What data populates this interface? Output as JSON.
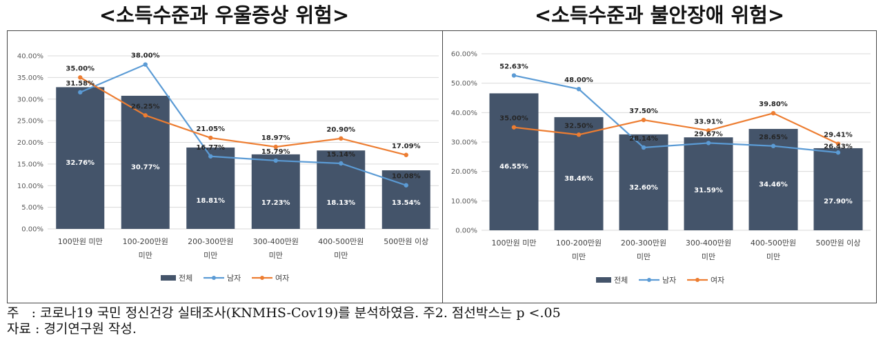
{
  "colors": {
    "total": "#44546a",
    "male": "#5b9bd5",
    "female": "#ed7d31"
  },
  "legend": {
    "total": "전체",
    "male": "남자",
    "female": "여자"
  },
  "chart_data": [
    {
      "type": "bar",
      "title": "<소득수준과 우울증상 위험>",
      "categories": [
        [
          "100만원 미만"
        ],
        [
          "100-200만원",
          "미만"
        ],
        [
          "200-300만원",
          "미만"
        ],
        [
          "300-400만원",
          "미만"
        ],
        [
          "400-500만원",
          "미만"
        ],
        [
          "500만원 이상"
        ]
      ],
      "ylim": [
        0,
        40
      ],
      "yticks": [
        "0.00%",
        "5.00%",
        "10.00%",
        "15.00%",
        "20.00%",
        "25.00%",
        "30.00%",
        "35.00%",
        "40.00%"
      ],
      "series": [
        {
          "name": "전체",
          "kind": "bar",
          "values": [
            32.76,
            30.77,
            18.81,
            17.23,
            18.13,
            13.54
          ],
          "labels": [
            "32.76%",
            "30.77%",
            "18.81%",
            "17.23%",
            "18.13%",
            "13.54%"
          ]
        },
        {
          "name": "남자",
          "kind": "line",
          "values": [
            31.58,
            38.0,
            16.77,
            15.79,
            15.14,
            10.08
          ],
          "labels": [
            "31.58%",
            "38.00%",
            "16.77%",
            "15.79%",
            "15.14%",
            "10.08%"
          ]
        },
        {
          "name": "여자",
          "kind": "line",
          "values": [
            35.0,
            26.25,
            21.05,
            18.97,
            20.9,
            17.09
          ],
          "labels": [
            "35.00%",
            "26.25%",
            "21.05%",
            "18.97%",
            "20.90%",
            "17.09%"
          ]
        }
      ],
      "legend_position": "bottom"
    },
    {
      "type": "bar",
      "title": "<소득수준과 불안장애 위험>",
      "categories": [
        [
          "100만원 미만"
        ],
        [
          "100-200만원",
          "미만"
        ],
        [
          "200-300만원",
          "미만"
        ],
        [
          "300-400만원",
          "미만"
        ],
        [
          "400-500만원",
          "미만"
        ],
        [
          "500만원 이상"
        ]
      ],
      "ylim": [
        0,
        60
      ],
      "yticks": [
        "0.00%",
        "10.00%",
        "20.00%",
        "30.00%",
        "40.00%",
        "50.00%",
        "60.00%"
      ],
      "series": [
        {
          "name": "전체",
          "kind": "bar",
          "values": [
            46.55,
            38.46,
            32.6,
            31.59,
            34.46,
            27.9
          ],
          "labels": [
            "46.55%",
            "38.46%",
            "32.60%",
            "31.59%",
            "34.46%",
            "27.90%"
          ]
        },
        {
          "name": "남자",
          "kind": "line",
          "values": [
            52.63,
            48.0,
            28.14,
            29.67,
            28.65,
            26.43
          ],
          "labels": [
            "52.63%",
            "48.00%",
            "28.14%",
            "29.67%",
            "28.65%",
            "26.43%"
          ]
        },
        {
          "name": "여자",
          "kind": "line",
          "values": [
            35.0,
            32.5,
            37.5,
            33.91,
            39.8,
            29.41
          ],
          "labels": [
            "35.00%",
            "32.50%",
            "37.50%",
            "33.91%",
            "39.80%",
            "29.41%"
          ]
        }
      ],
      "legend_position": "bottom"
    }
  ],
  "notes": {
    "line1": "주   : 코로나19 국민 정신건강 실태조사(KNMHS-Cov19)를 분석하였음. 주2. 점선박스는 p <.05",
    "line2": "자료 : 경기연구원 작성."
  }
}
